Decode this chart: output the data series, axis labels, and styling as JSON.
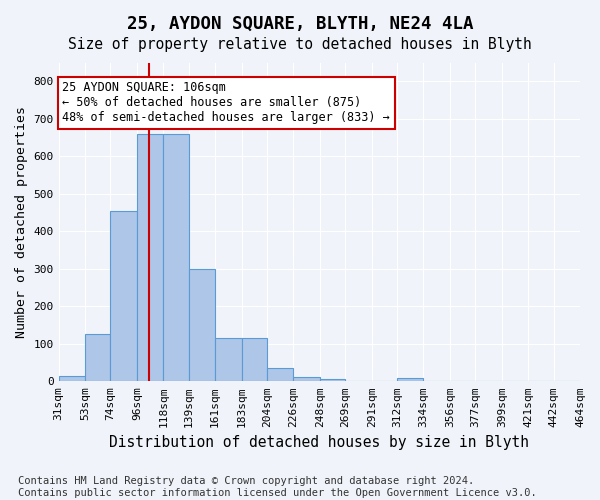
{
  "title": "25, AYDON SQUARE, BLYTH, NE24 4LA",
  "subtitle": "Size of property relative to detached houses in Blyth",
  "xlabel": "Distribution of detached houses by size in Blyth",
  "ylabel": "Number of detached properties",
  "bar_values": [
    15,
    125,
    455,
    660,
    660,
    300,
    115,
    115,
    35,
    12,
    5,
    0,
    0,
    10,
    0,
    0,
    0,
    0,
    0,
    0
  ],
  "bin_edges": [
    31,
    53,
    74,
    96,
    118,
    139,
    161,
    183,
    204,
    226,
    248,
    269,
    291,
    312,
    334,
    356,
    377,
    399,
    421,
    442,
    464
  ],
  "bar_color": "#aec6e8",
  "bar_edge_color": "#5b9bd5",
  "property_line_x": 106,
  "property_line_color": "#cc0000",
  "annotation_text": "25 AYDON SQUARE: 106sqm\n← 50% of detached houses are smaller (875)\n48% of semi-detached houses are larger (833) →",
  "annotation_box_color": "#ffffff",
  "annotation_box_edge": "#cc0000",
  "ylim": [
    0,
    850
  ],
  "yticks": [
    0,
    100,
    200,
    300,
    400,
    500,
    600,
    700,
    800
  ],
  "tick_labels": [
    "31sqm",
    "53sqm",
    "74sqm",
    "96sqm",
    "118sqm",
    "139sqm",
    "161sqm",
    "183sqm",
    "204sqm",
    "226sqm",
    "248sqm",
    "269sqm",
    "291sqm",
    "312sqm",
    "334sqm",
    "356sqm",
    "377sqm",
    "399sqm",
    "421sqm",
    "442sqm",
    "464sqm"
  ],
  "footer": "Contains HM Land Registry data © Crown copyright and database right 2024.\nContains public sector information licensed under the Open Government Licence v3.0.",
  "background_color": "#f0f4fa",
  "grid_color": "#ffffff",
  "title_fontsize": 12.5,
  "subtitle_fontsize": 10.5,
  "axis_fontsize": 9.5,
  "tick_fontsize": 8,
  "footer_fontsize": 7.5
}
